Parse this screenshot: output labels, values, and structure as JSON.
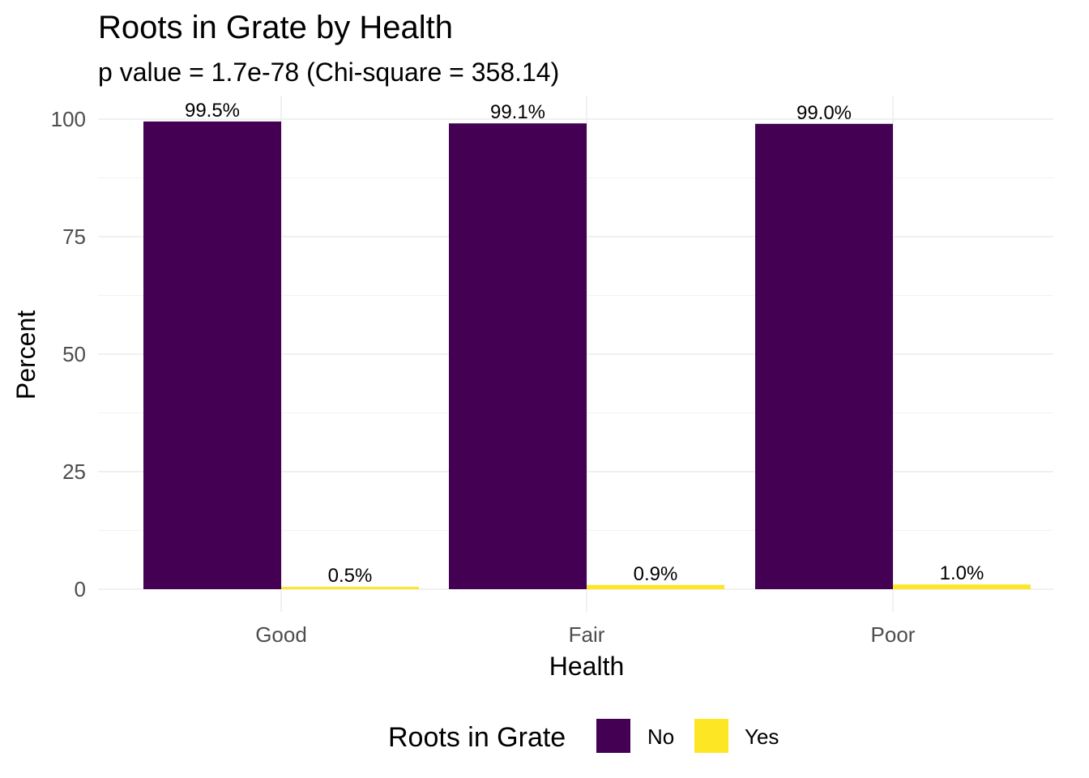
{
  "chart_data": {
    "type": "bar",
    "title": "Roots in Grate by Health",
    "subtitle": "p value = 1.7e-78 (Chi-square = 358.14)",
    "xlabel": "Health",
    "ylabel": "Percent",
    "categories": [
      "Good",
      "Fair",
      "Poor"
    ],
    "series": [
      {
        "name": "No",
        "color": "#440154",
        "values": [
          99.5,
          99.1,
          99.0
        ],
        "labels": [
          "99.5%",
          "99.1%",
          "99.0%"
        ]
      },
      {
        "name": "Yes",
        "color": "#FDE725",
        "values": [
          0.5,
          0.9,
          1.0
        ],
        "labels": [
          "0.5%",
          "0.9%",
          "1.0%"
        ]
      }
    ],
    "ylim": [
      0,
      104
    ],
    "yticks": [
      0,
      25,
      50,
      75,
      100
    ],
    "grid": true,
    "legend": {
      "title": "Roots in Grate",
      "position": "bottom"
    }
  }
}
